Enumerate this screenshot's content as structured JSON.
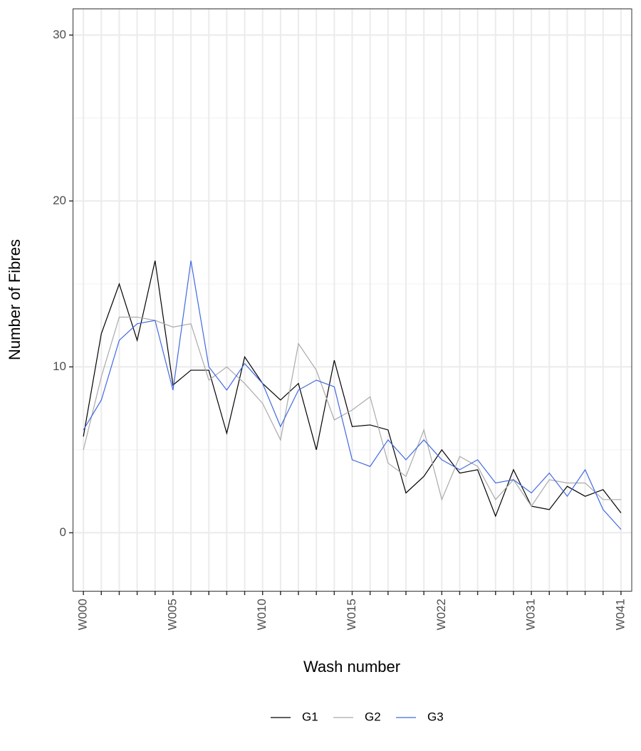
{
  "chart_data": {
    "type": "line",
    "x_label": "Wash number",
    "y_label": "Number of Fibres",
    "categories": [
      "W000",
      null,
      null,
      null,
      null,
      "W005",
      null,
      null,
      null,
      null,
      "W010",
      null,
      null,
      null,
      null,
      "W015",
      null,
      null,
      null,
      null,
      "W022",
      null,
      null,
      null,
      null,
      "W031",
      null,
      null,
      null,
      null,
      "W041"
    ],
    "series": [
      {
        "name": "G1",
        "color": "#000000",
        "values": [
          5.8,
          12.0,
          15.0,
          11.6,
          16.4,
          8.9,
          9.8,
          9.8,
          6.0,
          10.6,
          9.0,
          8.0,
          9.0,
          5.0,
          10.4,
          6.4,
          6.5,
          6.2,
          2.4,
          3.4,
          5.0,
          3.6,
          3.8,
          1.0,
          3.8,
          1.6,
          1.4,
          2.8,
          2.2,
          2.6,
          1.2
        ]
      },
      {
        "name": "G2",
        "color": "#aaaaaa",
        "values": [
          5.0,
          9.4,
          13.0,
          13.0,
          12.8,
          12.4,
          12.6,
          9.2,
          10.0,
          9.0,
          7.8,
          5.6,
          11.4,
          9.8,
          6.8,
          7.4,
          8.2,
          4.2,
          3.4,
          6.2,
          2.0,
          4.6,
          4.0,
          2.0,
          3.2,
          1.6,
          3.2,
          3.0,
          3.0,
          2.0,
          2.0
        ]
      },
      {
        "name": "G3",
        "color": "#4169e1",
        "values": [
          6.2,
          8.0,
          11.6,
          12.6,
          12.8,
          8.6,
          16.4,
          10.0,
          8.6,
          10.2,
          9.0,
          6.4,
          8.6,
          9.2,
          8.8,
          4.4,
          4.0,
          5.6,
          4.4,
          5.6,
          4.4,
          3.8,
          4.4,
          3.0,
          3.2,
          2.4,
          3.6,
          2.2,
          3.8,
          1.4,
          0.2
        ]
      }
    ],
    "ylim": [
      -3.5,
      31.6
    ],
    "yticks": [
      0,
      10,
      20,
      30
    ],
    "grid": true,
    "legend": "bottom"
  }
}
